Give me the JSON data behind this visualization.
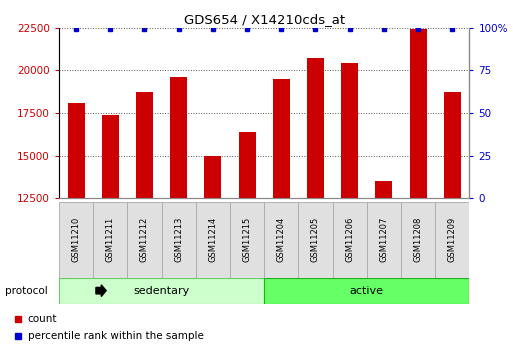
{
  "title": "GDS654 / X14210cds_at",
  "samples": [
    "GSM11210",
    "GSM11211",
    "GSM11212",
    "GSM11213",
    "GSM11214",
    "GSM11215",
    "GSM11204",
    "GSM11205",
    "GSM11206",
    "GSM11207",
    "GSM11208",
    "GSM11209"
  ],
  "counts": [
    18100,
    17400,
    18700,
    19600,
    15000,
    16400,
    19500,
    20700,
    20400,
    13500,
    22400,
    18700
  ],
  "groups": [
    {
      "label": "sedentary",
      "start": 0,
      "end": 6,
      "color": "#ccffcc",
      "edge_color": "#66cc66"
    },
    {
      "label": "active",
      "start": 6,
      "end": 12,
      "color": "#66ff66",
      "edge_color": "#22aa22"
    }
  ],
  "protocol_label": "protocol",
  "bar_color": "#cc0000",
  "percentile_color": "#0000cc",
  "ylim_left": [
    12500,
    22500
  ],
  "yticks_left": [
    12500,
    15000,
    17500,
    20000,
    22500
  ],
  "yticks_right": [
    0,
    25,
    50,
    75,
    100
  ],
  "grid_color": "#555555",
  "bar_width": 0.5,
  "tick_label_color": "#cc0000",
  "right_tick_label_color": "#0000cc",
  "background_color": "#ffffff",
  "cell_bg_color": "#e0e0e0",
  "cell_edge_color": "#aaaaaa"
}
